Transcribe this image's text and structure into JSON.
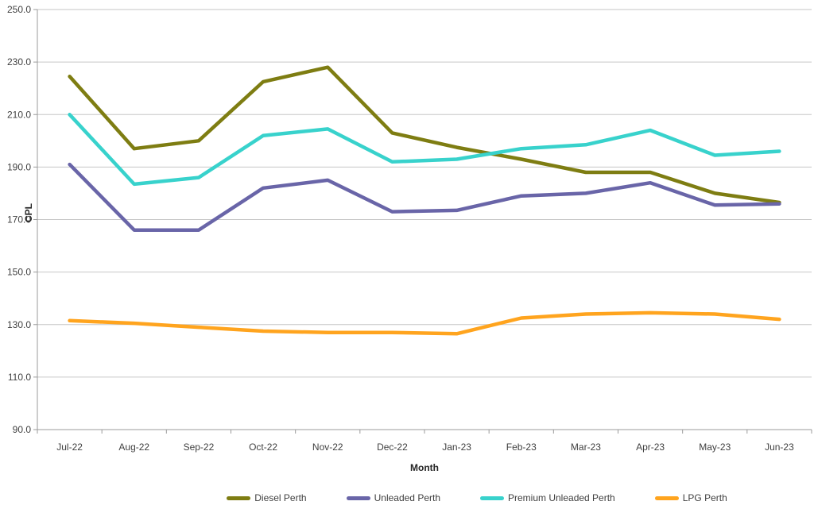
{
  "chart_data": {
    "type": "line",
    "title": "",
    "xlabel": "Month",
    "ylabel": "CPL",
    "categories": [
      "Jul-22",
      "Aug-22",
      "Sep-22",
      "Oct-22",
      "Nov-22",
      "Dec-22",
      "Jan-23",
      "Feb-23",
      "Mar-23",
      "Apr-23",
      "May-23",
      "Jun-23"
    ],
    "series": [
      {
        "name": "Diesel Perth",
        "color": "#7E7D12",
        "values": [
          224.5,
          197,
          200,
          222.5,
          228,
          203,
          197.5,
          193,
          188,
          188,
          180,
          176.5
        ]
      },
      {
        "name": "Unleaded Perth",
        "color": "#6965A8",
        "values": [
          191,
          166,
          166,
          182,
          185,
          173,
          173.5,
          179,
          180,
          184,
          175.5,
          176
        ]
      },
      {
        "name": "Premium Unleaded Perth",
        "color": "#38D2CC",
        "values": [
          210,
          183.5,
          186,
          202,
          204.5,
          192,
          193,
          197,
          198.5,
          204,
          194.5,
          196
        ]
      },
      {
        "name": "LPG Perth",
        "color": "#FFA41E",
        "values": [
          131.5,
          130.5,
          129,
          127.5,
          127,
          127,
          126.5,
          132.5,
          134,
          134.5,
          134,
          132
        ]
      }
    ],
    "ylim": [
      90,
      250
    ],
    "ytick_labels": [
      "90.0",
      "110.0",
      "130.0",
      "150.0",
      "170.0",
      "190.0",
      "210.0",
      "230.0",
      "250.0"
    ],
    "grid": "horizontal",
    "legend_position": "bottom-center"
  },
  "colors": {
    "gridline": "#C6C6C6",
    "axis_line": "#9B9B9B",
    "tick_text": "#3F3F3F",
    "background": "#FFFFFF"
  }
}
